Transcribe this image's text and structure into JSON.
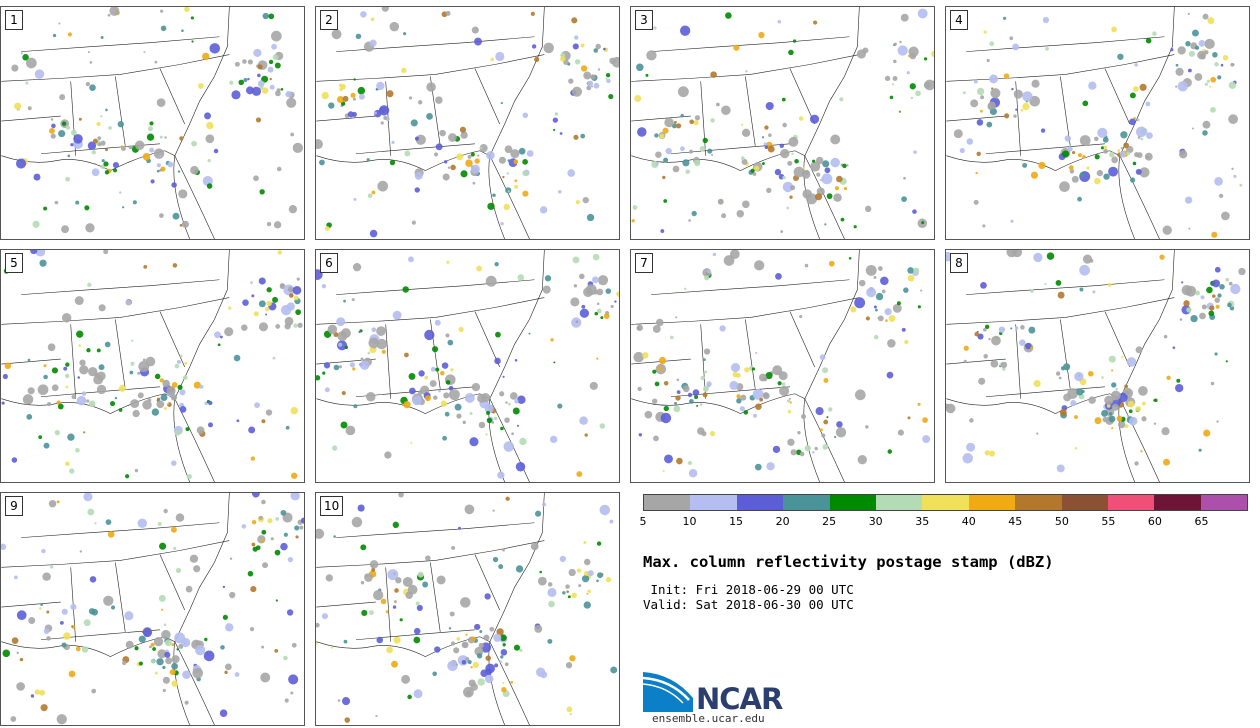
{
  "panels": [
    {
      "label": "1"
    },
    {
      "label": "2"
    },
    {
      "label": "3"
    },
    {
      "label": "4"
    },
    {
      "label": "5"
    },
    {
      "label": "6"
    },
    {
      "label": "7"
    },
    {
      "label": "8"
    },
    {
      "label": "9"
    },
    {
      "label": "10"
    }
  ],
  "colorbar": {
    "colors": [
      "#a6a6a6",
      "#b4bef0",
      "#5c5ed8",
      "#4a9499",
      "#008a00",
      "#b4dcb4",
      "#f0e05a",
      "#f0aa14",
      "#b4782d",
      "#8c5032",
      "#f05078",
      "#6e1436",
      "#ac50ac"
    ],
    "tick_labels": [
      "5",
      "10",
      "15",
      "20",
      "25",
      "30",
      "35",
      "40",
      "45",
      "50",
      "55",
      "60",
      "65"
    ]
  },
  "title": "Max. column reflectivity postage stamp (dBZ)",
  "init_line": " Init: Fri 2018-06-29 00 UTC",
  "valid_line": "Valid: Sat 2018-06-30 00 UTC",
  "logo": {
    "text": "NCAR",
    "url": "ensemble.ucar.edu"
  }
}
